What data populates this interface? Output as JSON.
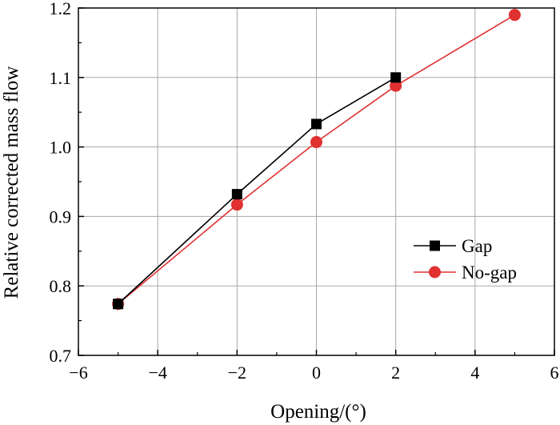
{
  "chart_data": {
    "type": "line",
    "xlabel": "Opening/(°)",
    "ylabel": "Relative corrected mass flow",
    "xlim": [
      -6,
      6
    ],
    "ylim": [
      0.7,
      1.2
    ],
    "xticks": [
      -6,
      -4,
      -2,
      0,
      2,
      4,
      6
    ],
    "xtick_labels": [
      "−6",
      "−4",
      "−2",
      "0",
      "2",
      "4",
      "6"
    ],
    "yticks": [
      0.7,
      0.8,
      0.9,
      1.0,
      1.1,
      1.2
    ],
    "ytick_labels": [
      "0.7",
      "0.8",
      "0.9",
      "1.0",
      "1.1",
      "1.2"
    ],
    "grid": true,
    "legend_position": "right",
    "series": [
      {
        "name": "Gap",
        "color": "#000000",
        "marker": "square",
        "x": [
          -5,
          -2,
          0,
          2
        ],
        "y": [
          0.774,
          0.932,
          1.033,
          1.1
        ]
      },
      {
        "name": "No-gap",
        "color": "#e03030",
        "marker": "circle",
        "x": [
          -5,
          -2,
          0,
          2,
          5
        ],
        "y": [
          0.774,
          0.917,
          1.007,
          1.088,
          1.19
        ]
      }
    ]
  }
}
